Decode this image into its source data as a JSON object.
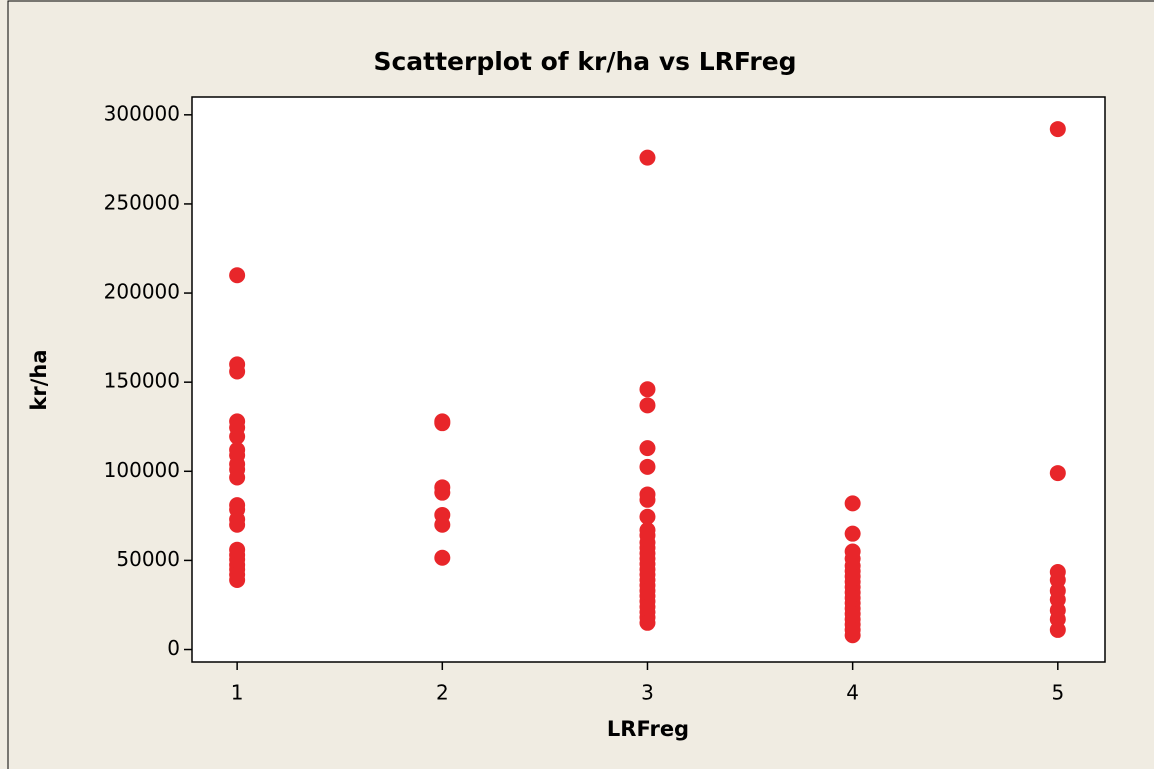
{
  "chart_data": {
    "type": "scatter",
    "title": "Scatterplot of kr/ha vs LRFreg",
    "x_label": "LRFreg",
    "y_label": "kr/ha",
    "color": "#e8262a",
    "x": [
      1,
      1,
      1,
      1,
      1,
      1,
      1,
      1,
      1,
      1,
      1,
      1,
      1,
      1,
      1,
      1,
      1,
      1,
      1,
      1,
      1,
      1,
      2,
      2,
      2,
      2,
      2,
      2,
      2,
      3,
      3,
      3,
      3,
      3,
      3,
      3,
      3,
      3,
      3,
      3,
      3,
      3,
      3,
      3,
      3,
      3,
      3,
      3,
      3,
      3,
      3,
      3,
      3,
      3,
      3,
      4,
      4,
      4,
      4,
      4,
      4,
      4,
      4,
      4,
      4,
      4,
      4,
      4,
      4,
      4,
      4,
      4,
      4,
      5,
      5,
      5,
      5,
      5,
      5,
      5,
      5,
      5
    ],
    "y": [
      210000,
      160000,
      156000,
      128000,
      124500,
      119500,
      112000,
      109000,
      104000,
      101000,
      96500,
      81000,
      78500,
      73000,
      70000,
      56000,
      53000,
      50500,
      47500,
      45000,
      42000,
      39000,
      128000,
      127000,
      91000,
      88000,
      75500,
      70000,
      51500,
      276000,
      146000,
      137000,
      113000,
      102500,
      87000,
      84000,
      74500,
      67000,
      64000,
      60000,
      57000,
      54000,
      51000,
      48000,
      45000,
      42000,
      39000,
      36000,
      33000,
      30000,
      27000,
      24000,
      21000,
      18000,
      15000,
      82000,
      65000,
      55000,
      51000,
      47000,
      44000,
      41000,
      38000,
      35000,
      32000,
      29000,
      26000,
      23000,
      20000,
      17000,
      14000,
      11000,
      8000,
      292000,
      99000,
      43500,
      39000,
      33000,
      28000,
      22000,
      17000,
      11000
    ],
    "xlim": [
      0.78,
      5.23
    ],
    "ylim": [
      -7000,
      310000
    ],
    "xticks": [
      1,
      2,
      3,
      4,
      5
    ],
    "yticks": [
      0,
      50000,
      100000,
      150000,
      200000,
      250000,
      300000
    ]
  }
}
